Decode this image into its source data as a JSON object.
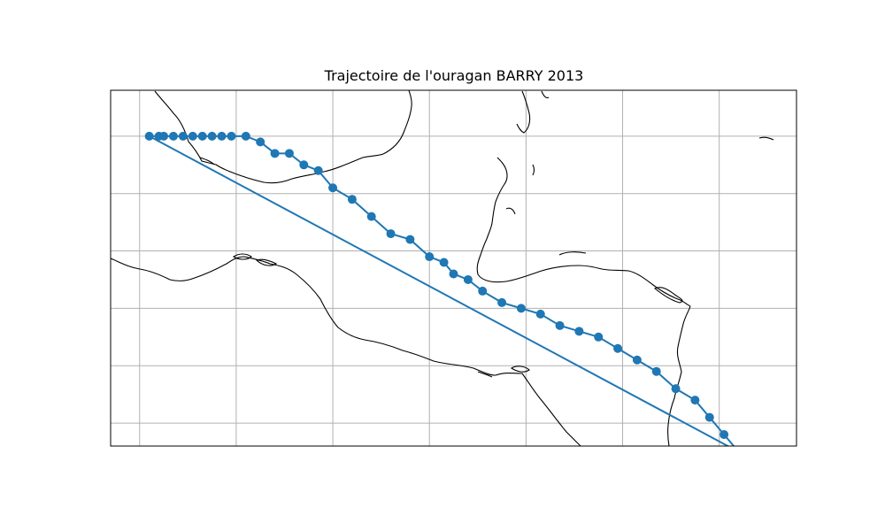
{
  "title": "Trajectoire de l'ouragan BARRY 2013",
  "colors": {
    "track": "#1f77b4",
    "coast": "#000000",
    "grid": "#b0b0b0",
    "frame": "#000000"
  },
  "chart_data": {
    "type": "map-track",
    "title": "Trajectoire de l'ouragan BARRY 2013",
    "grid": true,
    "xlim": [
      -98.3,
      -84.1
    ],
    "ylim": [
      15.4,
      21.6
    ],
    "gridlines_lon": [
      -97.7,
      -95.7,
      -93.7,
      -91.7,
      -89.7,
      -87.7,
      -85.7
    ],
    "gridlines_lat": [
      15.8,
      16.8,
      17.8,
      18.8,
      19.8,
      20.8
    ],
    "track": {
      "lon": [
        -97.5,
        -97.3,
        -97.2,
        -97.0,
        -96.8,
        -96.6,
        -96.4,
        -96.2,
        -96.0,
        -95.8,
        -95.5,
        -95.2,
        -94.9,
        -94.6,
        -94.3,
        -94.0,
        -93.7,
        -93.3,
        -92.9,
        -92.5,
        -92.1,
        -91.7,
        -91.4,
        -91.2,
        -90.9,
        -90.6,
        -90.2,
        -89.8,
        -89.4,
        -89.0,
        -88.6,
        -88.2,
        -87.8,
        -87.4,
        -87.0,
        -86.6,
        -86.2,
        -85.9,
        -85.6,
        -85.3
      ],
      "lat": [
        20.8,
        20.8,
        20.8,
        20.8,
        20.8,
        20.8,
        20.8,
        20.8,
        20.8,
        20.8,
        20.8,
        20.7,
        20.5,
        20.5,
        20.3,
        20.2,
        19.9,
        19.7,
        19.4,
        19.1,
        19.0,
        18.7,
        18.6,
        18.4,
        18.3,
        18.1,
        17.9,
        17.8,
        17.7,
        17.5,
        17.4,
        17.3,
        17.1,
        16.9,
        16.7,
        16.4,
        16.2,
        15.9,
        15.6,
        15.3
      ]
    }
  }
}
